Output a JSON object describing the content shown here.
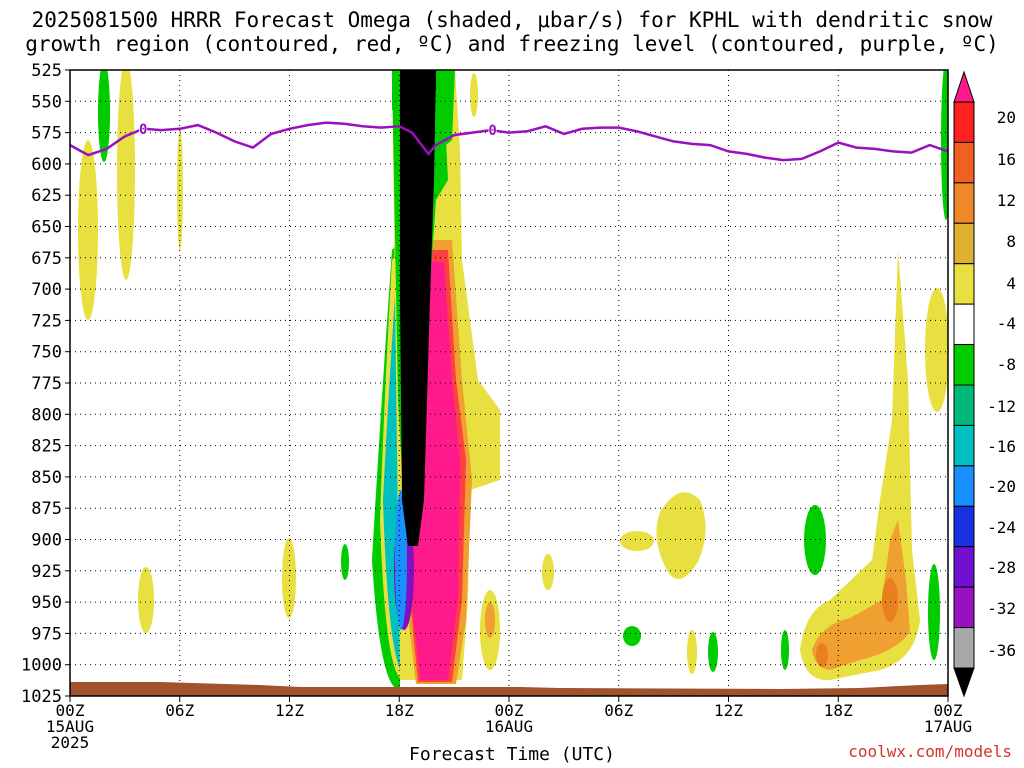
{
  "chart_data": {
    "type": "heatmap",
    "title": "2025081500 HRRR Forecast Omega (shaded, μbar/s) for KPHL with dendritic snow",
    "title_line2": "growth region (contoured, red, ºC) and freezing level (contoured, purple, ºC)",
    "xlabel": "Forecast Time (UTC)",
    "credit": "coolwx.com/models",
    "x_range_hours": [
      0,
      48
    ],
    "y_range_hPa": [
      525,
      1025
    ],
    "y_scale": "linear-inverted",
    "grid": true,
    "y_ticks": [
      "525",
      "550",
      "575",
      "600",
      "625",
      "650",
      "675",
      "700",
      "725",
      "750",
      "775",
      "800",
      "825",
      "850",
      "875",
      "900",
      "925",
      "950",
      "975",
      "1000",
      "1025"
    ],
    "x_ticks": [
      {
        "hour": 0,
        "label": "00Z",
        "sub": "15AUG",
        "sub2": "2025"
      },
      {
        "hour": 6,
        "label": "06Z"
      },
      {
        "hour": 12,
        "label": "12Z"
      },
      {
        "hour": 18,
        "label": "18Z"
      },
      {
        "hour": 24,
        "label": "00Z",
        "sub": "16AUG"
      },
      {
        "hour": 30,
        "label": "06Z"
      },
      {
        "hour": 36,
        "label": "12Z"
      },
      {
        "hour": 42,
        "label": "18Z"
      },
      {
        "hour": 48,
        "label": "00Z",
        "sub": "17AUG"
      }
    ],
    "colorbar": {
      "labels": [
        "20",
        "16",
        "12",
        "8",
        "4",
        "-4",
        "-8",
        "-12",
        "-16",
        "-20",
        "-24",
        "-28",
        "-32",
        "-36"
      ],
      "colors": [
        "#ff1a8c",
        "#ff2020",
        "#f06020",
        "#f08828",
        "#e0b030",
        "#e8e040",
        "#ffffff",
        "#00cc00",
        "#00b878",
        "#00c0c0",
        "#1890ff",
        "#1830e0",
        "#7010d0",
        "#9810c0",
        "#a8a8a8",
        "#000000"
      ]
    },
    "freezing_level": {
      "label": "0",
      "points": [
        [
          0,
          585
        ],
        [
          1,
          593
        ],
        [
          2,
          588
        ],
        [
          3,
          578
        ],
        [
          4,
          572
        ],
        [
          5,
          573
        ],
        [
          6,
          572
        ],
        [
          7,
          569
        ],
        [
          8,
          575
        ],
        [
          9,
          582
        ],
        [
          10,
          587
        ],
        [
          11,
          576
        ],
        [
          12,
          572
        ],
        [
          13,
          569
        ],
        [
          14,
          567
        ],
        [
          15,
          568
        ],
        [
          16,
          570
        ],
        [
          17,
          571
        ],
        [
          18,
          570
        ],
        [
          18.7,
          575
        ],
        [
          19.6,
          592
        ],
        [
          20,
          585
        ],
        [
          21,
          577
        ],
        [
          22,
          575
        ],
        [
          23,
          573
        ],
        [
          24,
          575
        ],
        [
          25,
          574
        ],
        [
          26,
          570
        ],
        [
          27,
          576
        ],
        [
          28,
          572
        ],
        [
          29,
          571
        ],
        [
          30,
          571
        ],
        [
          31,
          574
        ],
        [
          32,
          578
        ],
        [
          33,
          582
        ],
        [
          34,
          584
        ],
        [
          35,
          585
        ],
        [
          36,
          590
        ],
        [
          37,
          592
        ],
        [
          38,
          595
        ],
        [
          39,
          597
        ],
        [
          40,
          596
        ],
        [
          41,
          590
        ],
        [
          42,
          583
        ],
        [
          43,
          587
        ],
        [
          44,
          588
        ],
        [
          45,
          590
        ],
        [
          46,
          591
        ],
        [
          47,
          585
        ],
        [
          48,
          590
        ]
      ]
    },
    "terrain": {
      "color": "#a0522d"
    },
    "shaded_regions": [
      {
        "name": "black-core",
        "color": "#000000",
        "value": "-36"
      },
      {
        "name": "magenta-core",
        "color": "#ff1a8c",
        "value": "20"
      },
      {
        "name": "yellow-positive",
        "color": "#e8e040",
        "value": "4"
      },
      {
        "name": "green-negative",
        "color": "#00cc00",
        "value": "-4"
      },
      {
        "name": "orange-positive",
        "color": "#f08828",
        "value": "8"
      }
    ]
  }
}
